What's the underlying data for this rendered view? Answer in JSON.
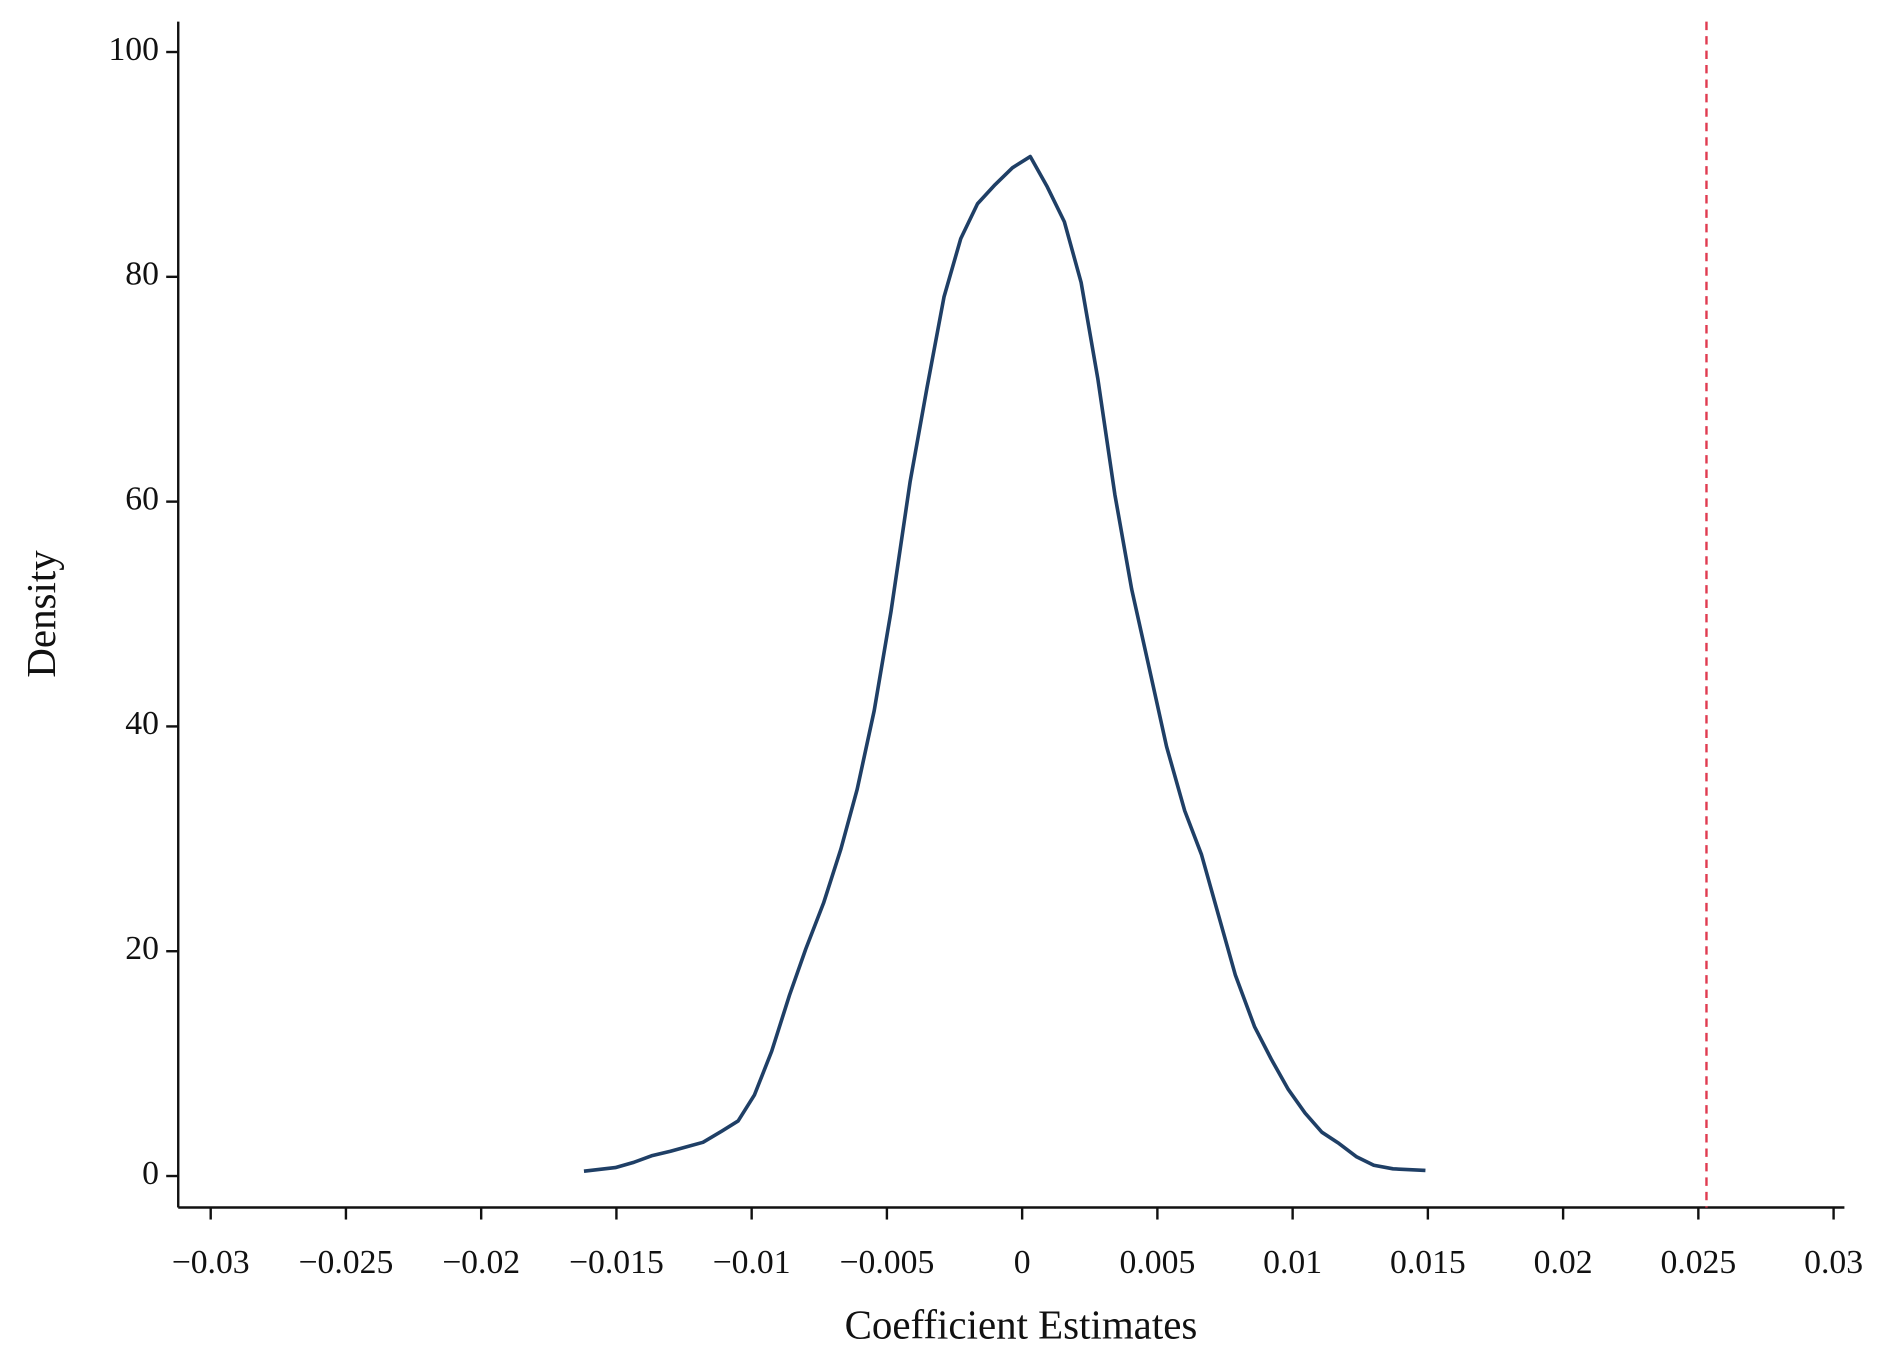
{
  "chart_data": {
    "type": "line",
    "xlabel": "Coefficient Estimates",
    "ylabel": "Density",
    "x": [
      -0.0162,
      -0.01504,
      -0.01438,
      -0.0137,
      -0.013,
      -0.0118,
      -0.0111,
      -0.0105,
      -0.0099,
      -0.00926,
      -0.0086,
      -0.008,
      -0.00734,
      -0.0067,
      -0.0061,
      -0.00547,
      -0.00485,
      -0.00414,
      -0.00352,
      -0.00289,
      -0.00227,
      -0.00165,
      -0.001,
      -0.00036,
      0.0003,
      0.00093,
      0.00156,
      0.00218,
      0.0028,
      0.00343,
      0.00405,
      0.00467,
      0.00534,
      0.00601,
      0.00663,
      0.00726,
      0.00788,
      0.00859,
      0.00921,
      0.00984,
      0.01046,
      0.01108,
      0.01171,
      0.01237,
      0.013,
      0.01371,
      0.01491
    ],
    "series": [
      {
        "color": "#1f3f66",
        "values": [
          0.43,
          0.75,
          1.2,
          1.8,
          2.2,
          3.0,
          4.0,
          4.9,
          7.2,
          11.1,
          16.1,
          20.2,
          24.3,
          29.1,
          34.4,
          41.4,
          50.2,
          61.8,
          70.1,
          78.2,
          83.4,
          86.5,
          88.2,
          89.7,
          90.7,
          88.0,
          84.9,
          79.5,
          70.9,
          60.6,
          52.2,
          45.5,
          38.2,
          32.5,
          28.6,
          23.2,
          17.9,
          13.3,
          10.4,
          7.7,
          5.6,
          3.9,
          2.9,
          1.7,
          0.96,
          0.64,
          0.5
        ]
      }
    ],
    "vline": {
      "value": 0.0253,
      "color": "#e03c50"
    },
    "xlim": [
      -0.0312,
      0.0304
    ],
    "ylim": [
      -2.8,
      102.7
    ],
    "xticks": [
      {
        "value": -0.03,
        "label": "−0.03"
      },
      {
        "value": -0.025,
        "label": "−0.025"
      },
      {
        "value": -0.02,
        "label": "−0.02"
      },
      {
        "value": -0.015,
        "label": "−0.015"
      },
      {
        "value": -0.01,
        "label": "−0.01"
      },
      {
        "value": -0.005,
        "label": "−0.005"
      },
      0,
      0.005,
      0.01,
      0.015,
      0.02,
      0.025,
      0.03
    ],
    "yticks": [
      0,
      20,
      40,
      60,
      80,
      100
    ]
  }
}
